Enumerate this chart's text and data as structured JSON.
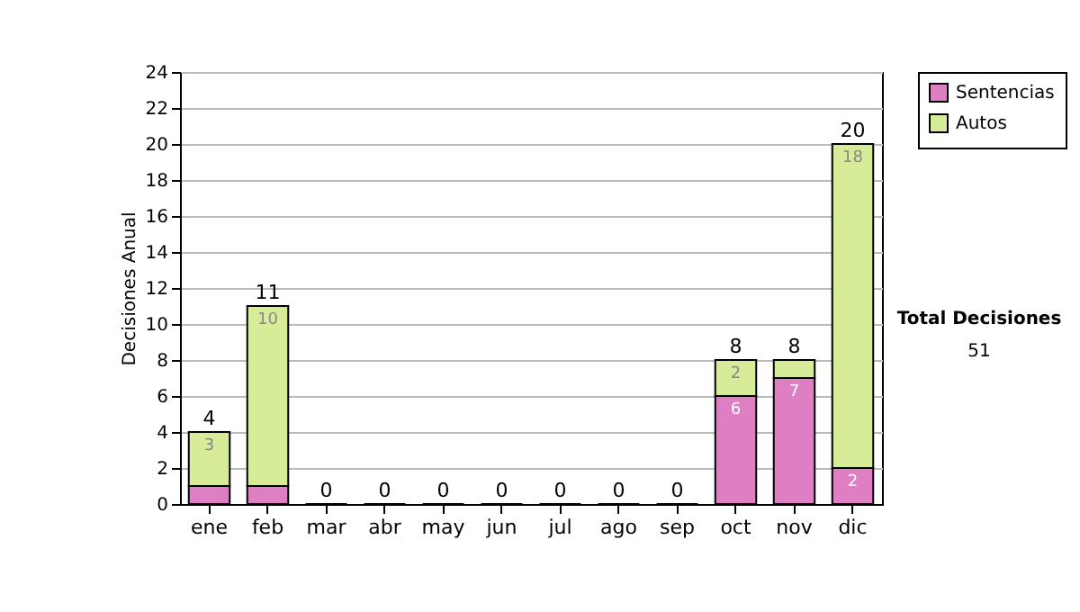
{
  "chart_data": {
    "type": "bar",
    "stacked": true,
    "ylabel": "Decisiones Anual",
    "categories": [
      "ene",
      "feb",
      "mar",
      "abr",
      "may",
      "jun",
      "jul",
      "ago",
      "sep",
      "oct",
      "nov",
      "dic"
    ],
    "series": [
      {
        "name": "Sentencias",
        "color": "#de7fc4",
        "values": [
          1,
          1,
          0,
          0,
          0,
          0,
          0,
          0,
          0,
          6,
          7,
          2
        ],
        "value_labels": [
          null,
          null,
          null,
          null,
          null,
          null,
          null,
          null,
          null,
          "6",
          "7",
          "2"
        ]
      },
      {
        "name": "Autos",
        "color": "#d6ec98",
        "values": [
          3,
          10,
          0,
          0,
          0,
          0,
          0,
          0,
          0,
          2,
          1,
          18
        ],
        "value_labels": [
          "3",
          "10",
          null,
          null,
          null,
          null,
          null,
          null,
          null,
          "2",
          null,
          "18"
        ]
      }
    ],
    "totals": [
      "4",
      "11",
      "0",
      "0",
      "0",
      "0",
      "0",
      "0",
      "0",
      "8",
      "8",
      "20"
    ],
    "ylim": [
      0,
      24
    ],
    "yticks": [
      0,
      2,
      4,
      6,
      8,
      10,
      12,
      14,
      16,
      18,
      20,
      22,
      24
    ],
    "grid": "y",
    "legend": "right",
    "annotations": [
      "Total Decisiones",
      "51"
    ]
  }
}
